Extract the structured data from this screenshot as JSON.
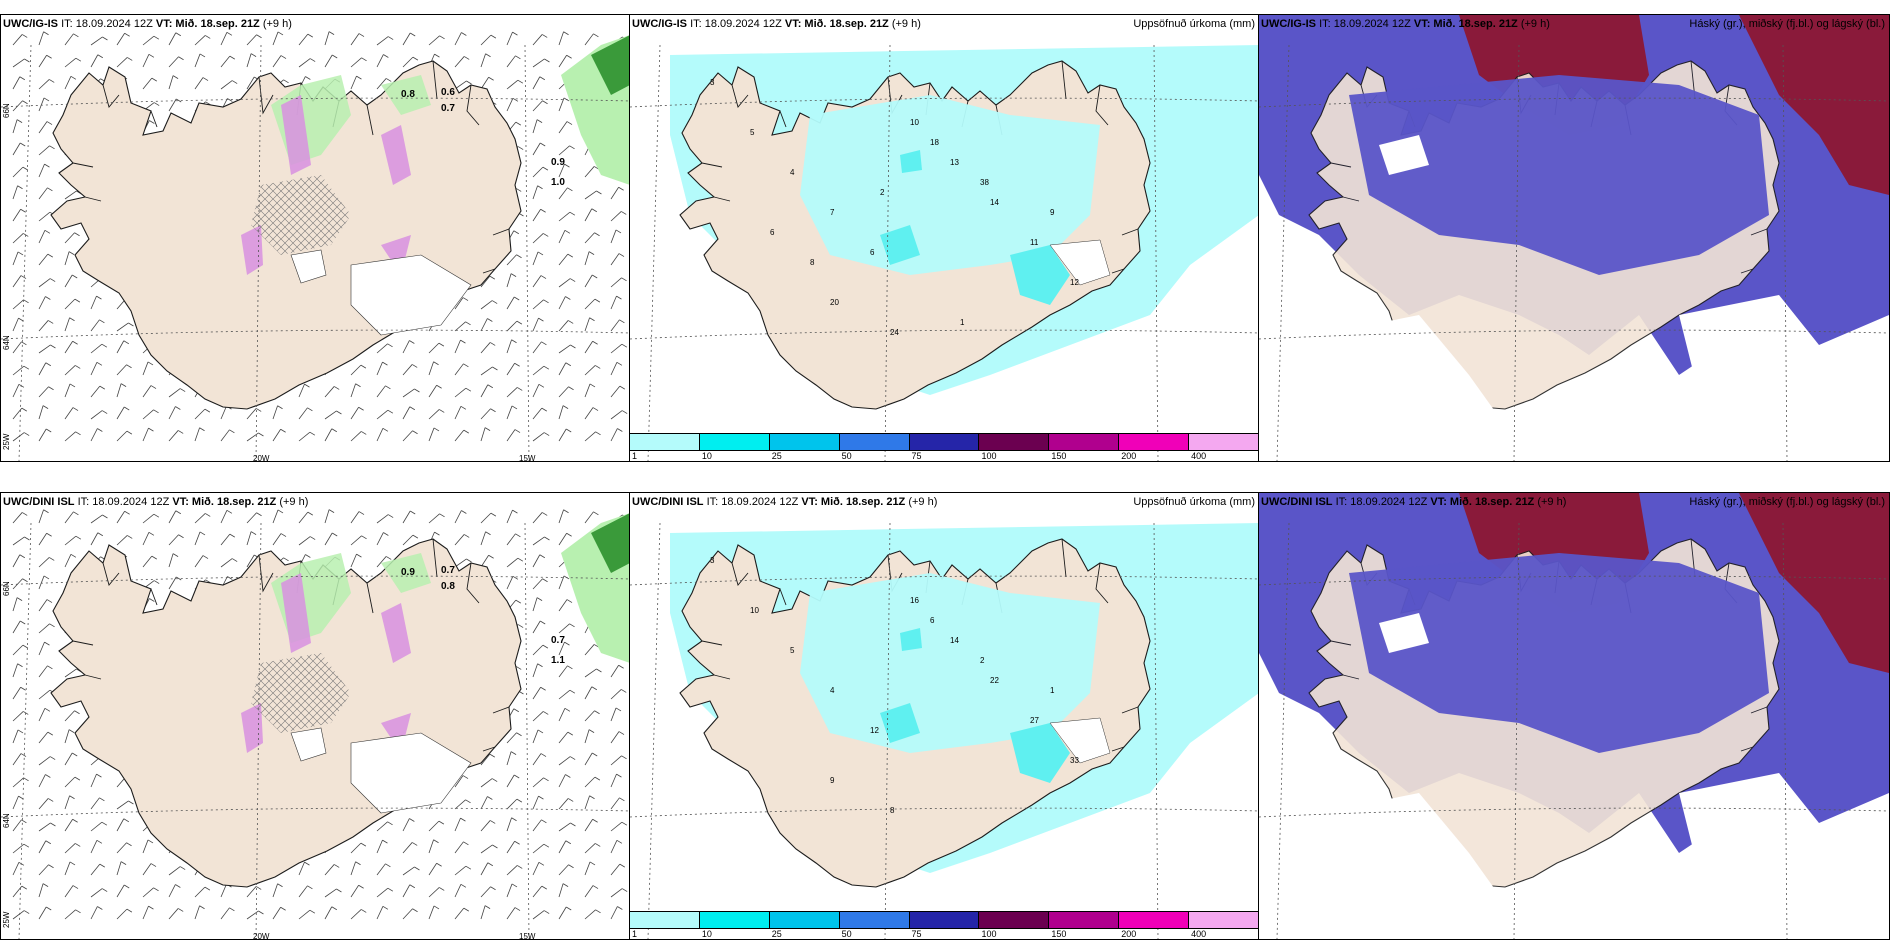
{
  "panels": {
    "r1c1": {
      "model": "UWC/IG-IS",
      "init": "IT: 18.09.2024 12Z",
      "valid": "VT: Mið. 18.sep. 21Z",
      "lead": "(+9 h)"
    },
    "r1c2": {
      "model": "UWC/IG-IS",
      "init": "IT: 18.09.2024 12Z",
      "valid": "VT: Mið. 18.sep. 21Z",
      "lead": "(+9 h)",
      "right": "Uppsöfnuð úrkoma (mm)"
    },
    "r1c3": {
      "model": "UWC/IG-IS",
      "init": "IT: 18.09.2024 12Z",
      "valid": "VT: Mið. 18.sep. 21Z",
      "lead": "(+9 h)",
      "right": "Háský (gr.), miðský (fj.bl.) og lágský (bl.)"
    },
    "r2c1": {
      "model": "UWC/DINI ISL",
      "init": "IT: 18.09.2024 12Z",
      "valid": "VT: Mið. 18.sep. 21Z",
      "lead": "(+9 h)"
    },
    "r2c2": {
      "model": "UWC/DINI ISL",
      "init": "IT: 18.09.2024 12Z",
      "valid": "VT: Mið. 18.sep. 21Z",
      "lead": "(+9 h)",
      "right": "Uppsöfnuð úrkoma (mm)"
    },
    "r2c3": {
      "model": "UWC/DINI ISL",
      "init": "IT: 18.09.2024 12Z",
      "valid": "VT: Mið. 18.sep. 21Z",
      "lead": "(+9 h)",
      "right": "Háský (gr.), miðský (fj.bl.) og lágský (bl.)"
    }
  },
  "grid_labels": {
    "lat66": "66N",
    "lat64": "64N",
    "lon20": "20W",
    "lon15": "15W",
    "lon25": "25W"
  },
  "precip_colorbar": {
    "ticks": [
      "1",
      "10",
      "25",
      "50",
      "75",
      "100",
      "150",
      "200",
      "400"
    ],
    "colors": [
      "#b4fbfb",
      "#00eef0",
      "#00c4ec",
      "#2f79e8",
      "#2525a8",
      "#6b0050",
      "#b0008e",
      "#f000b8",
      "#f4a8f0"
    ]
  },
  "colors": {
    "land": "#f2e4d6",
    "precip_light": "#b4fbfb",
    "precip_mid": "#5ff0f0",
    "cloud_high": "#8a1a3a",
    "cloud_mid": "#5a55c8",
    "cloud_low": "#ffffff",
    "rain_green": "#b8f0b0",
    "rain_purple": "#d890e0"
  },
  "precip_values_r1": [
    "3",
    "5",
    "4",
    "7",
    "6",
    "10",
    "13",
    "14",
    "11",
    "12",
    "20",
    "24",
    "18",
    "38",
    "9",
    "8",
    "6",
    "2",
    "1"
  ],
  "precip_values_r2": [
    "3",
    "10",
    "5",
    "4",
    "12",
    "16",
    "14",
    "22",
    "27",
    "33",
    "9",
    "8",
    "6",
    "2",
    "1"
  ],
  "rain_values_r1": [
    "0.8",
    "0.6",
    "0.7",
    "0.9",
    "1.0"
  ],
  "rain_values_r2": [
    "0.9",
    "0.7",
    "0.8",
    "0.7",
    "1.1"
  ]
}
